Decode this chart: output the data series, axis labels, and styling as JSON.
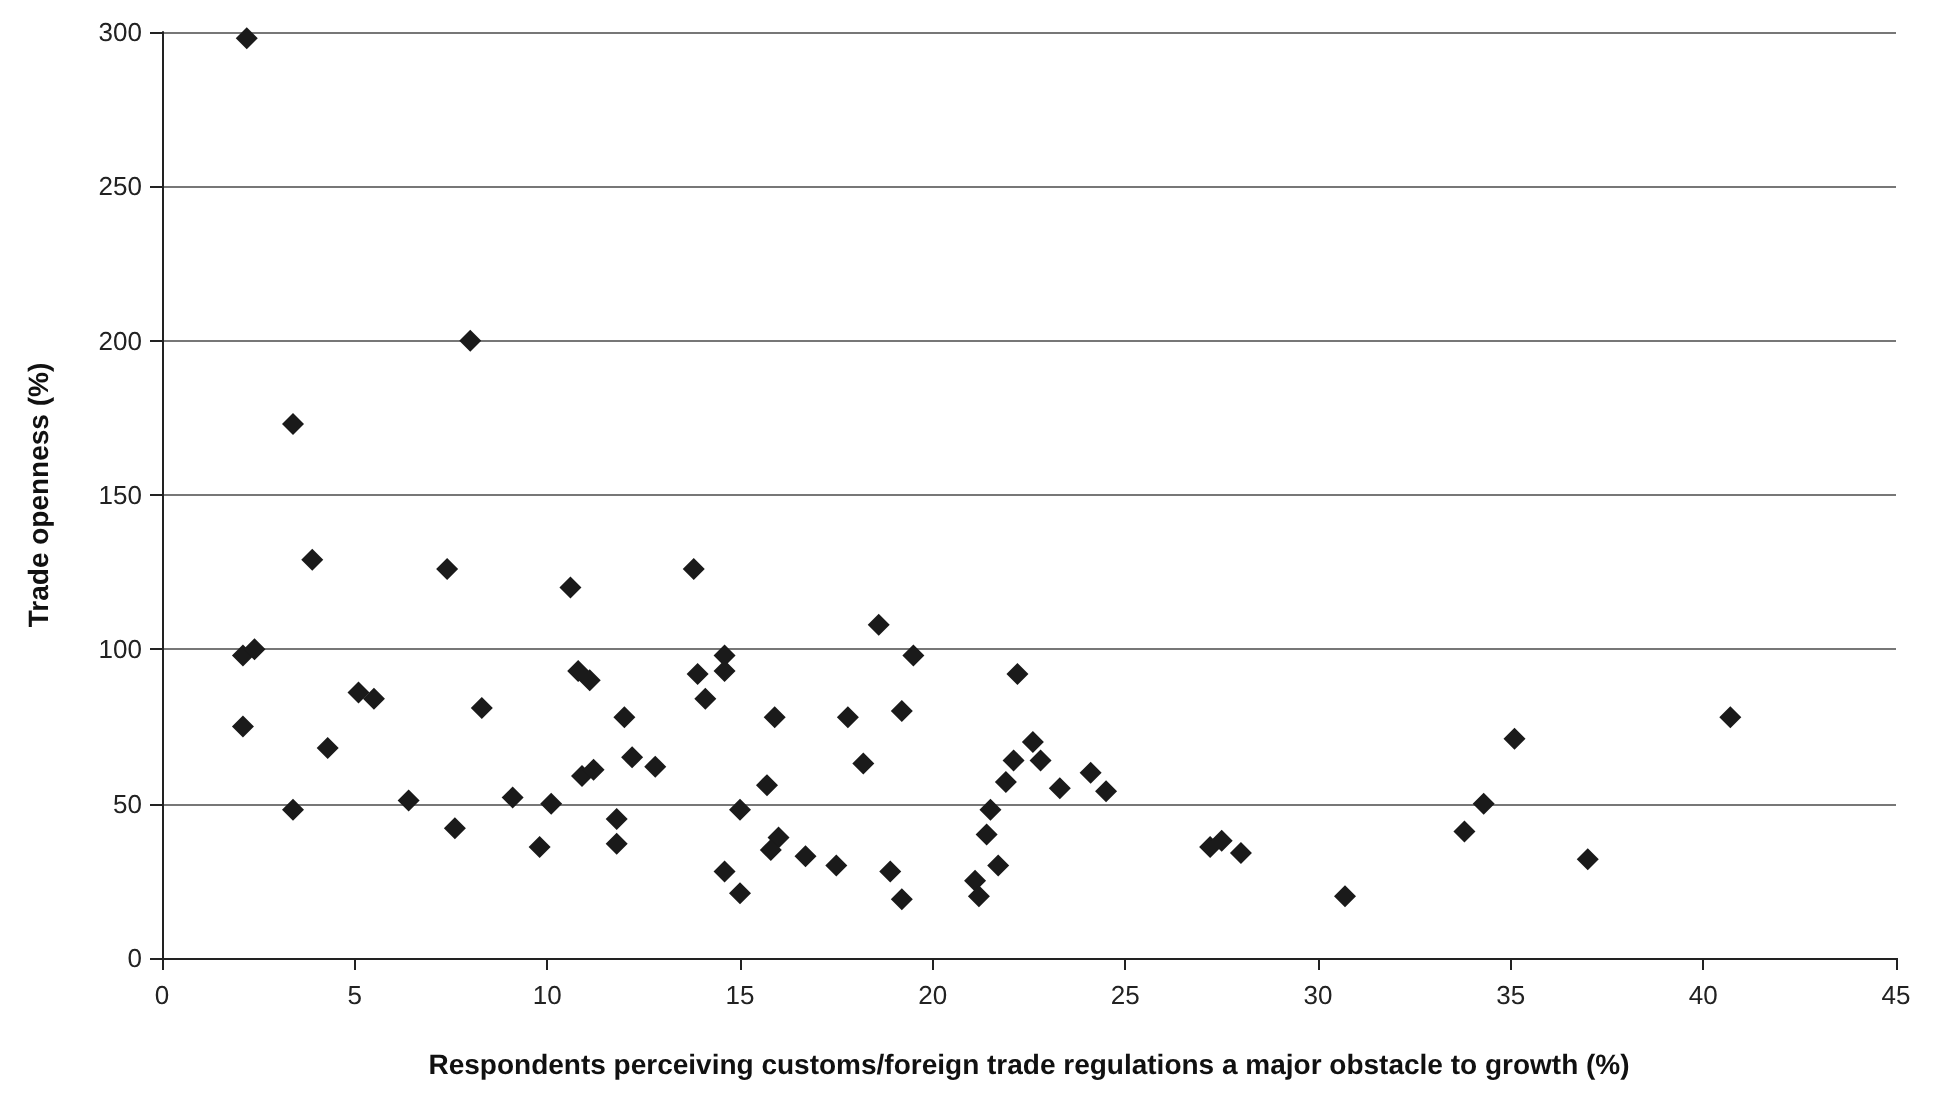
{
  "chart_data": {
    "type": "scatter",
    "xlabel": "Respondents perceiving customs/foreign trade regulations a major obstacle to growth (%)",
    "ylabel": "Trade openness (%)",
    "x": [
      2.2,
      8.0,
      3.4,
      3.9,
      7.4,
      10.6,
      13.8,
      2.1,
      2.4,
      2.1,
      5.1,
      5.5,
      4.3,
      3.4,
      6.4,
      7.6,
      8.3,
      9.1,
      9.8,
      10.1,
      10.8,
      11.1,
      12.0,
      12.2,
      10.9,
      11.2,
      12.8,
      11.8,
      11.8,
      13.9,
      14.1,
      14.6,
      14.6,
      15.0,
      14.6,
      15.0,
      15.9,
      15.7,
      16.0,
      15.8,
      16.7,
      17.5,
      17.8,
      18.2,
      18.6,
      19.2,
      19.5,
      18.9,
      19.2,
      21.1,
      21.2,
      21.4,
      21.5,
      21.7,
      21.9,
      22.1,
      22.2,
      22.6,
      22.8,
      23.3,
      24.1,
      24.5,
      27.2,
      27.5,
      28.0,
      30.7,
      33.8,
      34.3,
      35.1,
      37.0,
      40.7
    ],
    "values": [
      298,
      200,
      173,
      129,
      126,
      120,
      126,
      98,
      100,
      75,
      86,
      84,
      68,
      48,
      51,
      42,
      81,
      52,
      36,
      50,
      93,
      90,
      78,
      65,
      59,
      61,
      62,
      45,
      37,
      92,
      84,
      98,
      93,
      48,
      28,
      21,
      78,
      56,
      39,
      35,
      33,
      30,
      78,
      63,
      108,
      80,
      98,
      28,
      19,
      25,
      20,
      40,
      48,
      30,
      57,
      64,
      92,
      70,
      64,
      55,
      60,
      54,
      36,
      38,
      34,
      20,
      41,
      50,
      71,
      32,
      78
    ],
    "color": "#1a1a1a",
    "marker": "diamond",
    "grid": "y",
    "xlim": [
      0,
      45
    ],
    "xticks": [
      0,
      5,
      10,
      15,
      20,
      25,
      30,
      35,
      40,
      45
    ],
    "ylim": [
      0,
      300
    ],
    "yticks": [
      0,
      50,
      100,
      150,
      200,
      250,
      300
    ]
  }
}
